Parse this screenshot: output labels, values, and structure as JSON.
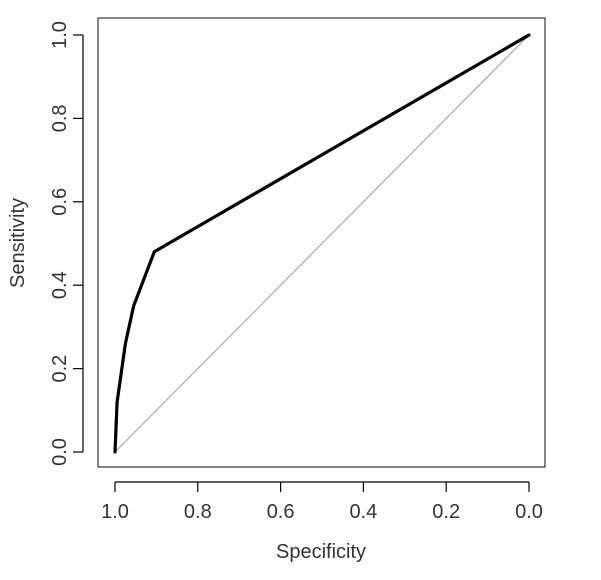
{
  "chart_data": {
    "type": "line",
    "xlabel": "Specificity",
    "ylabel": "Sensitivity",
    "xlim": [
      1.0,
      0.0
    ],
    "ylim": [
      0.0,
      1.0
    ],
    "x_reversed": true,
    "x_ticks": [
      "1.0",
      "0.8",
      "0.6",
      "0.4",
      "0.2",
      "0.0"
    ],
    "y_ticks": [
      "0.0",
      "0.2",
      "0.4",
      "0.6",
      "0.8",
      "1.0"
    ],
    "grid": false,
    "legend": "none",
    "series": [
      {
        "style": "solid",
        "color": "#000000",
        "points": [
          {
            "specificity": 1.0,
            "sensitivity": 0.0
          },
          {
            "specificity": 0.995,
            "sensitivity": 0.12
          },
          {
            "specificity": 0.975,
            "sensitivity": 0.26
          },
          {
            "specificity": 0.955,
            "sensitivity": 0.35
          },
          {
            "specificity": 0.905,
            "sensitivity": 0.48
          },
          {
            "specificity": 0.0,
            "sensitivity": 1.0
          }
        ]
      },
      {
        "style": "reference-diagonal",
        "color": "#b0b0b0",
        "points": [
          {
            "specificity": 1.0,
            "sensitivity": 0.0
          },
          {
            "specificity": 0.0,
            "sensitivity": 1.0
          }
        ]
      }
    ]
  }
}
